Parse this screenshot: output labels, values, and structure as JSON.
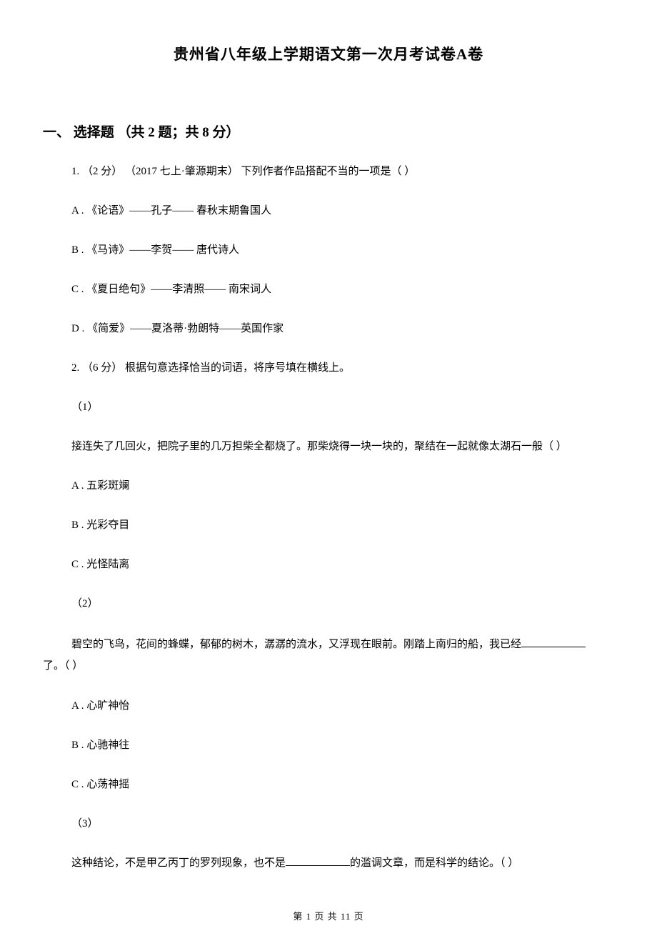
{
  "title": "贵州省八年级上学期语文第一次月考试卷A卷",
  "section": {
    "heading": "一、 选择题 （共 2 题；共 8 分）"
  },
  "q1": {
    "stem": "1. （2 分） （2017 七上·肇源期末） 下列作者作品搭配不当的一项是（     ）",
    "a": "A . 《论语》——孔子—— 春秋末期鲁国人",
    "b": "B . 《马诗》——李贺—— 唐代诗人",
    "c": "C . 《夏日绝句》——李清照—— 南宋词人",
    "d": "D . 《简爱》——夏洛蒂·勃朗特——英国作家"
  },
  "q2": {
    "stem": "2. （6 分）  根据句意选择恰当的词语，将序号填在横线上。",
    "sub1_num": "（1）",
    "sub1_text": "接连失了几回火，把院子里的几万担柴全都烧了。那柴烧得一块一块的，聚结在一起就像太湖石一般（     ）",
    "sub1_a": "A . 五彩斑斓",
    "sub1_b": "B . 光彩夺目",
    "sub1_c": "C . 光怪陆离",
    "sub2_num": "（2）",
    "sub2_line1": "碧空的飞鸟，花间的蜂蝶，郁郁的树木，潺潺的流水，又浮现在眼前。刚踏上南归的船，我已经",
    "sub2_line2": "了。（     ）",
    "sub2_a": "A . 心旷神怡",
    "sub2_b": "B . 心驰神往",
    "sub2_c": "C . 心荡神摇",
    "sub3_num": "（3）",
    "sub3_before": "这种结论，不是甲乙丙丁的罗列现象，也不是",
    "sub3_after": "的滥调文章，而是科学的结论。（     ）"
  },
  "footer": "第 1 页 共 11 页",
  "style": {
    "background_color": "#ffffff",
    "text_color": "#000000",
    "title_fontsize": 21,
    "heading_fontsize": 19,
    "body_fontsize": 15,
    "footer_fontsize": 13,
    "font_family": "SimSun"
  }
}
